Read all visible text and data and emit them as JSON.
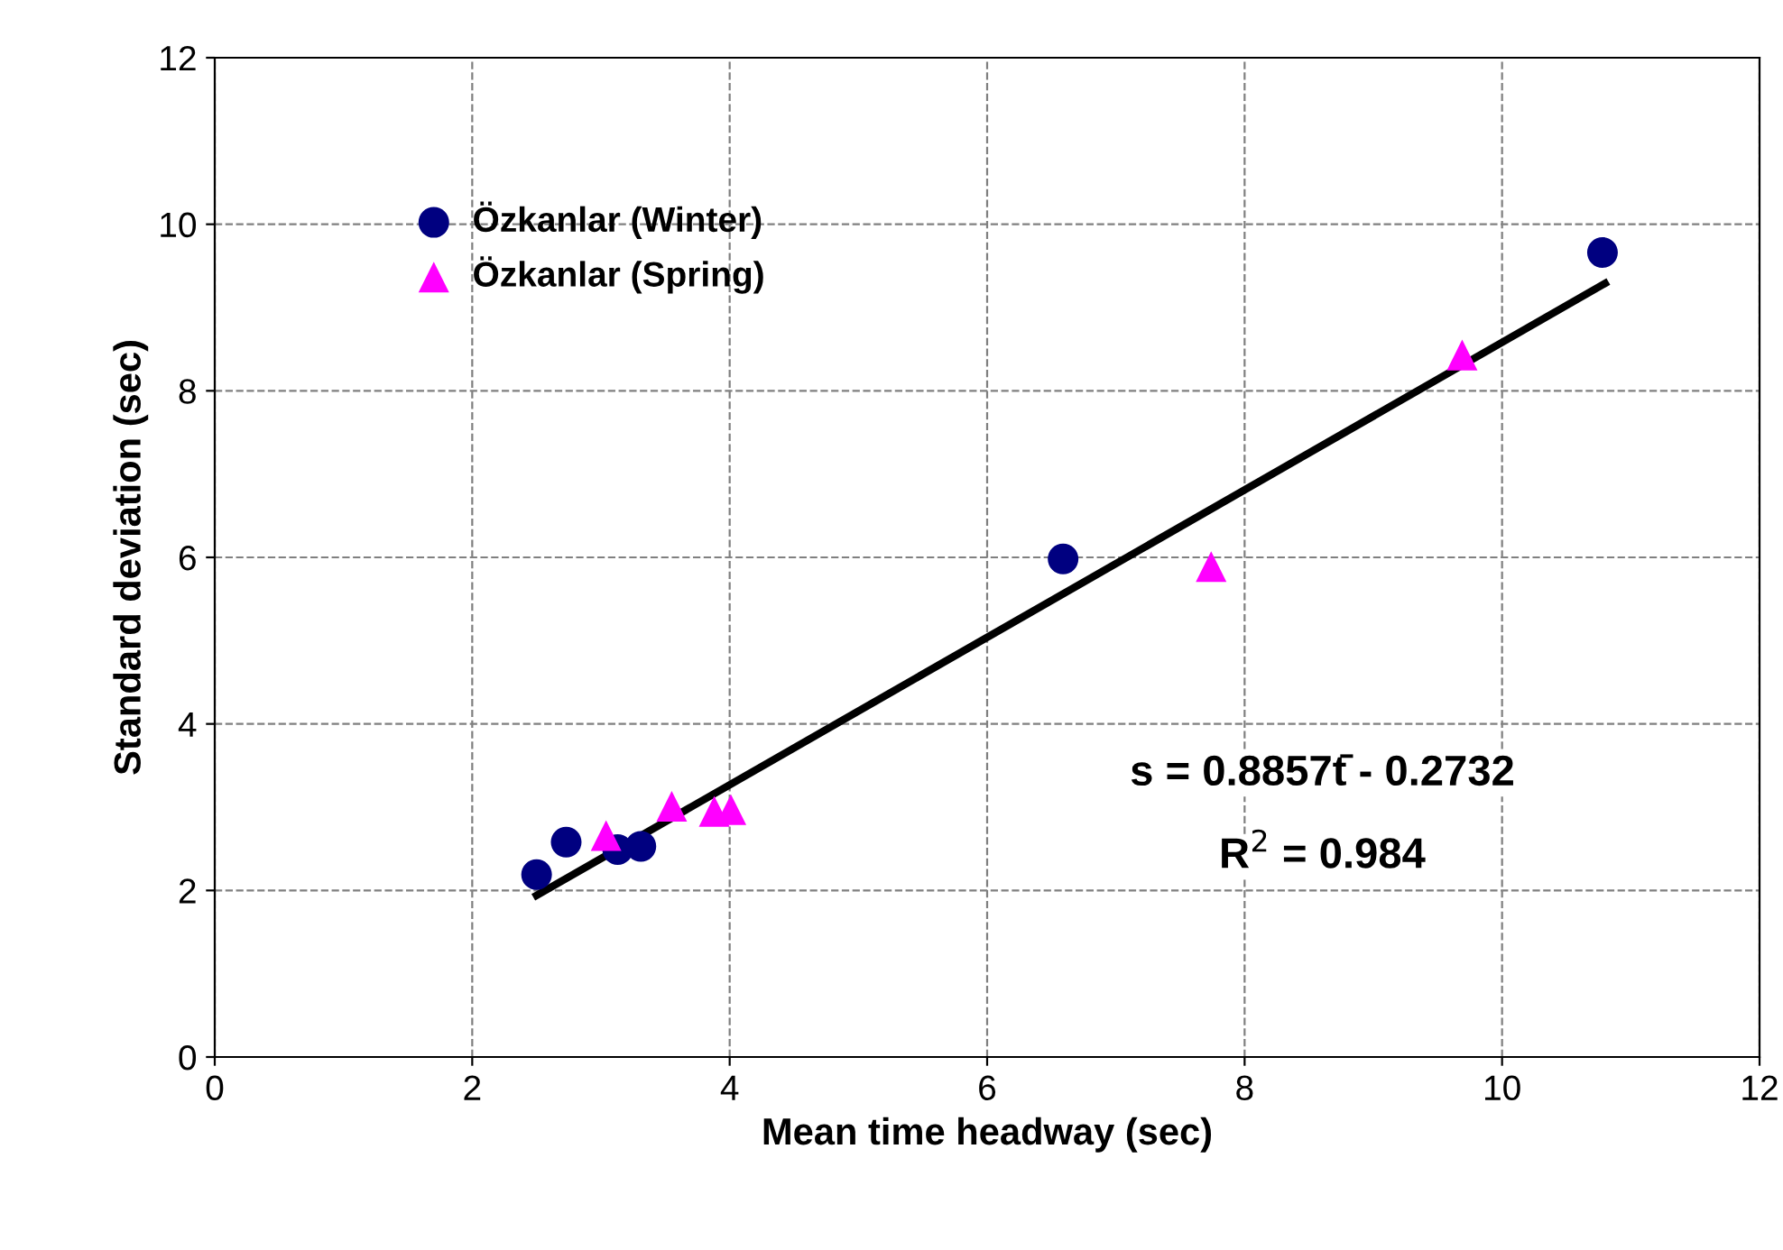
{
  "chart_data": {
    "type": "scatter",
    "xlabel": "Mean time headway (sec)",
    "ylabel": "Standard deviation (sec)",
    "xlim": [
      0,
      12
    ],
    "ylim": [
      0,
      12
    ],
    "xticks": [
      0,
      2,
      4,
      6,
      8,
      10,
      12
    ],
    "yticks": [
      0,
      2,
      4,
      6,
      8,
      10,
      12
    ],
    "grid": true,
    "legend": "top left",
    "series": [
      {
        "name": "Özkanlar (Winter)",
        "color": "#000080",
        "marker": "circle",
        "x": [
          2.5,
          2.73,
          3.13,
          3.31,
          6.59,
          10.78
        ],
        "values": [
          2.19,
          2.58,
          2.49,
          2.53,
          5.98,
          9.66
        ]
      },
      {
        "name": "Özkanlar (Spring)",
        "color": "#ff00ff",
        "marker": "triangle",
        "x": [
          3.04,
          3.55,
          3.88,
          4.01,
          7.74,
          9.69
        ],
        "values": [
          2.66,
          3.01,
          2.95,
          2.97,
          5.89,
          8.43
        ]
      },
      {
        "type": "line",
        "color": "#000000",
        "marker": "none",
        "line_style": "solid",
        "x": [
          2.5,
          10.8
        ],
        "values": [
          1.94,
          9.29
        ]
      }
    ],
    "annotations": [
      "s = 0.8857t̄ - 0.2732",
      "R$^{2}$ = 0.984"
    ]
  }
}
